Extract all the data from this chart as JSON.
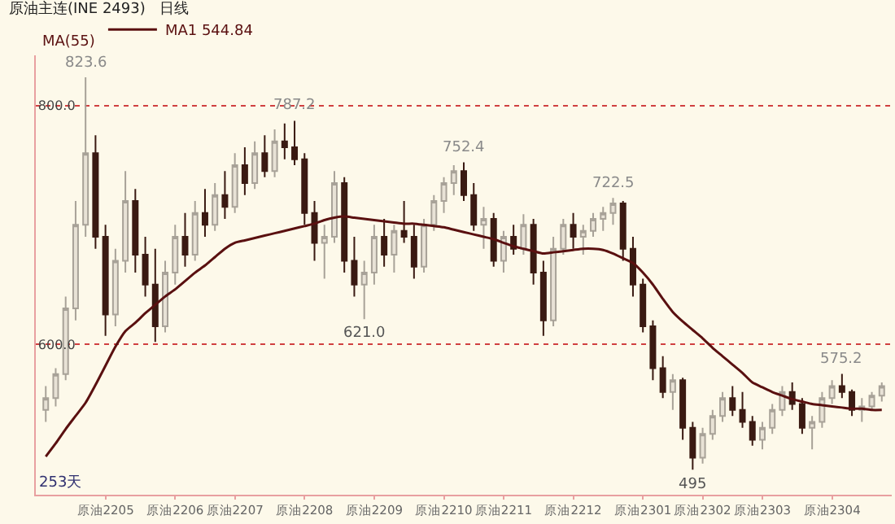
{
  "chart_data": {
    "type": "candlestick",
    "title": "原油主连(INE 2493)",
    "subtitle": "日线",
    "categories": [
      null,
      null,
      null,
      null,
      null,
      null,
      "原油2205",
      null,
      null,
      null,
      null,
      null,
      null,
      "原油2206",
      null,
      null,
      null,
      null,
      null,
      "原油2207",
      null,
      null,
      null,
      null,
      null,
      null,
      "原油2208",
      null,
      null,
      null,
      null,
      null,
      null,
      "原油2209",
      null,
      null,
      null,
      null,
      null,
      null,
      "原油2210",
      null,
      null,
      null,
      null,
      null,
      "原油2211",
      null,
      null,
      null,
      null,
      null,
      null,
      "原油2212",
      null,
      null,
      null,
      null,
      null,
      null,
      "原油2301",
      null,
      null,
      null,
      null,
      null,
      "原油2302",
      null,
      null,
      null,
      null,
      null,
      "原油2303",
      null,
      null,
      null,
      null,
      null,
      null,
      "原油2304",
      null,
      null,
      null,
      null,
      null
    ],
    "ohlc": [
      [
        545,
        565,
        535,
        555
      ],
      [
        555,
        580,
        548,
        575
      ],
      [
        575,
        640,
        570,
        630
      ],
      [
        630,
        720,
        620,
        700
      ],
      [
        700,
        823.6,
        690,
        760
      ],
      [
        760,
        775,
        680,
        690
      ],
      [
        690,
        700,
        607,
        625
      ],
      [
        625,
        680,
        615,
        670
      ],
      [
        670,
        745,
        660,
        720
      ],
      [
        720,
        730,
        660,
        675
      ],
      [
        675,
        690,
        640,
        650
      ],
      [
        650,
        680,
        602,
        615
      ],
      [
        615,
        670,
        610,
        660
      ],
      [
        660,
        700,
        650,
        690
      ],
      [
        690,
        710,
        665,
        675
      ],
      [
        675,
        720,
        670,
        710
      ],
      [
        710,
        730,
        690,
        700
      ],
      [
        700,
        735,
        695,
        725
      ],
      [
        725,
        745,
        705,
        715
      ],
      [
        715,
        760,
        710,
        750
      ],
      [
        750,
        765,
        725,
        735
      ],
      [
        735,
        770,
        730,
        760
      ],
      [
        760,
        775,
        740,
        745
      ],
      [
        745,
        780,
        740,
        770
      ],
      [
        770,
        785,
        755,
        765
      ],
      [
        765,
        787.2,
        750,
        755
      ],
      [
        755,
        760,
        700,
        710
      ],
      [
        710,
        720,
        670,
        685
      ],
      [
        685,
        700,
        655,
        690
      ],
      [
        690,
        745,
        685,
        735
      ],
      [
        735,
        740,
        660,
        670
      ],
      [
        670,
        690,
        640,
        650
      ],
      [
        650,
        670,
        621,
        660
      ],
      [
        660,
        700,
        650,
        690
      ],
      [
        690,
        705,
        665,
        675
      ],
      [
        675,
        700,
        660,
        695
      ],
      [
        695,
        720,
        685,
        690
      ],
      [
        690,
        700,
        655,
        665
      ],
      [
        665,
        705,
        660,
        700
      ],
      [
        700,
        725,
        695,
        720
      ],
      [
        720,
        740,
        710,
        735
      ],
      [
        735,
        750,
        725,
        745
      ],
      [
        745,
        752.4,
        720,
        725
      ],
      [
        725,
        735,
        695,
        700
      ],
      [
        700,
        715,
        680,
        705
      ],
      [
        705,
        710,
        665,
        670
      ],
      [
        670,
        695,
        660,
        690
      ],
      [
        690,
        700,
        675,
        680
      ],
      [
        680,
        709,
        675,
        700
      ],
      [
        700,
        705,
        650,
        660
      ],
      [
        660,
        670,
        607,
        620
      ],
      [
        620,
        690,
        615,
        680
      ],
      [
        680,
        705,
        675,
        700
      ],
      [
        700,
        710,
        680,
        690
      ],
      [
        690,
        700,
        675,
        695
      ],
      [
        695,
        710,
        690,
        705
      ],
      [
        705,
        715,
        695,
        710
      ],
      [
        710,
        722.5,
        700,
        718
      ],
      [
        718,
        720,
        670,
        680
      ],
      [
        680,
        690,
        640,
        650
      ],
      [
        650,
        655,
        610,
        615
      ],
      [
        615,
        620,
        570,
        580
      ],
      [
        580,
        590,
        555,
        560
      ],
      [
        560,
        575,
        545,
        570
      ],
      [
        570,
        572,
        520,
        530
      ],
      [
        530,
        535,
        495,
        505
      ],
      [
        505,
        530,
        500,
        525
      ],
      [
        525,
        545,
        520,
        540
      ],
      [
        540,
        560,
        535,
        555
      ],
      [
        555,
        565,
        540,
        545
      ],
      [
        545,
        560,
        530,
        535
      ],
      [
        535,
        540,
        515,
        520
      ],
      [
        520,
        535,
        512,
        530
      ],
      [
        530,
        550,
        525,
        545
      ],
      [
        545,
        565,
        540,
        560
      ],
      [
        560,
        568,
        545,
        550
      ],
      [
        550,
        555,
        525,
        530
      ],
      [
        530,
        540,
        512,
        535
      ],
      [
        535,
        560,
        530,
        555
      ],
      [
        555,
        570,
        550,
        565
      ],
      [
        565,
        575.2,
        555,
        560
      ],
      [
        560,
        562,
        540,
        545
      ],
      [
        545,
        555,
        535,
        548
      ],
      [
        548,
        560,
        545,
        557
      ],
      [
        557,
        568,
        552,
        565
      ]
    ],
    "series": [
      {
        "type": "line",
        "name": "MA1 544.84",
        "color": "#5a1010",
        "values": [
          506,
          517,
          529,
          540,
          551,
          566,
          582,
          598,
          611,
          618,
          626,
          633,
          640,
          646,
          653,
          660,
          666,
          673,
          680,
          685,
          687,
          689,
          691,
          693,
          695,
          697,
          699,
          701,
          704,
          706,
          707,
          706,
          705,
          704,
          703,
          702,
          701,
          701,
          700,
          699,
          698,
          696,
          694,
          692,
          690,
          688,
          685,
          682,
          680,
          678,
          676,
          677,
          678,
          679,
          680,
          680,
          679,
          676,
          672,
          668,
          660,
          650,
          638,
          627,
          619,
          612,
          605,
          597,
          590,
          583,
          576,
          568,
          564,
          560,
          557,
          554,
          552,
          550,
          549,
          548,
          547,
          546,
          546,
          545,
          545
        ]
      }
    ],
    "ylim": [
      474,
      842
    ],
    "yticks": [
      {
        "value": 600,
        "label": "600.0"
      },
      {
        "value": 800,
        "label": "800.0"
      }
    ],
    "grid": "y",
    "legend": "top left",
    "annotations": [
      "MA(55)",
      "253天",
      {
        "text": "823.6",
        "y": 823.6
      },
      {
        "text": "787.2",
        "y": 787.2
      },
      {
        "text": "752.4",
        "y": 752.4
      },
      {
        "text": "722.5",
        "y": 722.5
      },
      {
        "text": "621.0",
        "y": 621
      },
      {
        "text": "495",
        "y": 495
      },
      {
        "text": "575.2",
        "y": 575.2
      }
    ]
  }
}
